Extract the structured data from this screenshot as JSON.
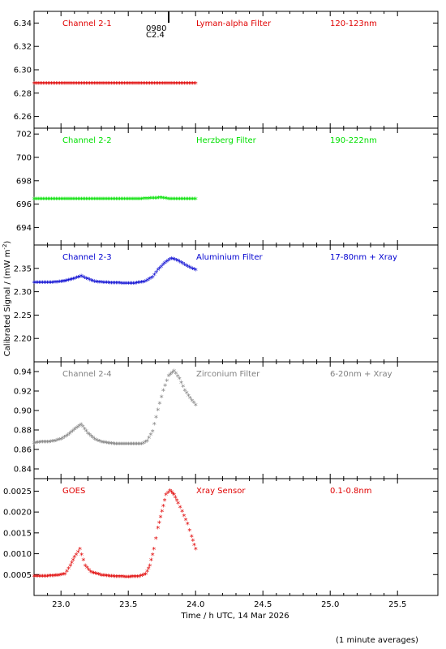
{
  "ylabel": "Calibrated Signal / (mW m",
  "ylabel_sup": "-2",
  "ylabel_tail": ")",
  "xlabel": "Time / h UTC, 14 Mar 2026",
  "footnote": "(1 minute averages)",
  "marker": {
    "line1": "0980",
    "line2": "C2.4",
    "x": 23.8
  },
  "chart_data": [
    {
      "type": "scatter",
      "channel": "Channel 2-1",
      "filter": "Lyman-alpha Filter",
      "band": "120-123nm",
      "color": "#e00000",
      "xlim": [
        22.8,
        25.8
      ],
      "ylim": [
        6.25,
        6.35
      ],
      "yticks": [
        "6.26",
        "6.28",
        "6.30",
        "6.32",
        "6.34"
      ],
      "points": [
        [
          22.8,
          6.288
        ],
        [
          23.0,
          6.288
        ],
        [
          23.2,
          6.288
        ],
        [
          23.4,
          6.288
        ],
        [
          23.6,
          6.288
        ],
        [
          23.8,
          6.288
        ],
        [
          24.0,
          6.288
        ]
      ]
    },
    {
      "type": "scatter",
      "channel": "Channel 2-2",
      "filter": "Herzberg Filter",
      "band": "190-222nm",
      "color": "#00e000",
      "xlim": [
        22.8,
        25.8
      ],
      "ylim": [
        692.5,
        702.5
      ],
      "yticks": [
        "694",
        "696",
        "698",
        "700",
        "702"
      ],
      "points": [
        [
          22.8,
          696.4
        ],
        [
          23.0,
          696.4
        ],
        [
          23.2,
          696.4
        ],
        [
          23.4,
          696.4
        ],
        [
          23.6,
          696.4
        ],
        [
          23.75,
          696.5
        ],
        [
          23.8,
          696.4
        ],
        [
          24.0,
          696.4
        ]
      ]
    },
    {
      "type": "scatter",
      "channel": "Channel 2-3",
      "filter": "Aluminium Filter",
      "band": "17-80nm + Xray",
      "color": "#0000d0",
      "xlim": [
        22.8,
        25.8
      ],
      "ylim": [
        2.15,
        2.4
      ],
      "yticks": [
        "2.20",
        "2.25",
        "2.30",
        "2.35"
      ],
      "points": [
        [
          22.8,
          2.318
        ],
        [
          22.9,
          2.318
        ],
        [
          23.0,
          2.32
        ],
        [
          23.08,
          2.325
        ],
        [
          23.15,
          2.332
        ],
        [
          23.2,
          2.326
        ],
        [
          23.25,
          2.32
        ],
        [
          23.35,
          2.318
        ],
        [
          23.45,
          2.317
        ],
        [
          23.55,
          2.317
        ],
        [
          23.62,
          2.32
        ],
        [
          23.68,
          2.33
        ],
        [
          23.72,
          2.345
        ],
        [
          23.77,
          2.36
        ],
        [
          23.82,
          2.37
        ],
        [
          23.87,
          2.365
        ],
        [
          23.93,
          2.355
        ],
        [
          24.0,
          2.345
        ]
      ]
    },
    {
      "type": "scatter",
      "channel": "Channel 2-4",
      "filter": "Zirconium Filter",
      "band": "6-20nm + Xray",
      "color": "#808080",
      "xlim": [
        22.8,
        25.8
      ],
      "ylim": [
        0.83,
        0.95
      ],
      "yticks": [
        "0.84",
        "0.86",
        "0.88",
        "0.90",
        "0.92",
        "0.94"
      ],
      "points": [
        [
          22.8,
          0.866
        ],
        [
          22.85,
          0.867
        ],
        [
          22.9,
          0.867
        ],
        [
          22.95,
          0.868
        ],
        [
          23.0,
          0.87
        ],
        [
          23.05,
          0.874
        ],
        [
          23.1,
          0.88
        ],
        [
          23.15,
          0.885
        ],
        [
          23.2,
          0.876
        ],
        [
          23.25,
          0.87
        ],
        [
          23.3,
          0.867
        ],
        [
          23.4,
          0.865
        ],
        [
          23.5,
          0.865
        ],
        [
          23.6,
          0.865
        ],
        [
          23.64,
          0.868
        ],
        [
          23.68,
          0.878
        ],
        [
          23.72,
          0.9
        ],
        [
          23.76,
          0.92
        ],
        [
          23.8,
          0.935
        ],
        [
          23.84,
          0.94
        ],
        [
          23.88,
          0.932
        ],
        [
          23.92,
          0.92
        ],
        [
          23.96,
          0.912
        ],
        [
          24.0,
          0.905
        ]
      ]
    },
    {
      "type": "scatter",
      "channel": "GOES",
      "filter": "Xray Sensor",
      "band": "0.1-0.8nm",
      "color": "#e00000",
      "xlim": [
        22.8,
        25.8
      ],
      "ylim": [
        0.0,
        0.0028
      ],
      "yticks": [
        "0.0005",
        "0.0010",
        "0.0015",
        "0.0020",
        "0.0025"
      ],
      "points": [
        [
          22.8,
          0.00045
        ],
        [
          22.9,
          0.00045
        ],
        [
          22.98,
          0.00047
        ],
        [
          23.03,
          0.0005
        ],
        [
          23.07,
          0.0007
        ],
        [
          23.1,
          0.0009
        ],
        [
          23.14,
          0.0011
        ],
        [
          23.18,
          0.0007
        ],
        [
          23.22,
          0.00055
        ],
        [
          23.3,
          0.00047
        ],
        [
          23.4,
          0.00044
        ],
        [
          23.5,
          0.00043
        ],
        [
          23.58,
          0.00044
        ],
        [
          23.63,
          0.0005
        ],
        [
          23.66,
          0.0007
        ],
        [
          23.69,
          0.0011
        ],
        [
          23.72,
          0.0016
        ],
        [
          23.75,
          0.002
        ],
        [
          23.78,
          0.0024
        ],
        [
          23.81,
          0.0025
        ],
        [
          23.84,
          0.0024
        ],
        [
          23.87,
          0.0022
        ],
        [
          23.9,
          0.002
        ],
        [
          23.94,
          0.0017
        ],
        [
          23.97,
          0.0014
        ],
        [
          24.0,
          0.0011
        ]
      ]
    }
  ],
  "xticks": [
    "23.0",
    "23.5",
    "24.0",
    "24.5",
    "25.0",
    "25.5"
  ],
  "xtick_values": [
    23.0,
    23.5,
    24.0,
    24.5,
    25.0,
    25.5
  ]
}
